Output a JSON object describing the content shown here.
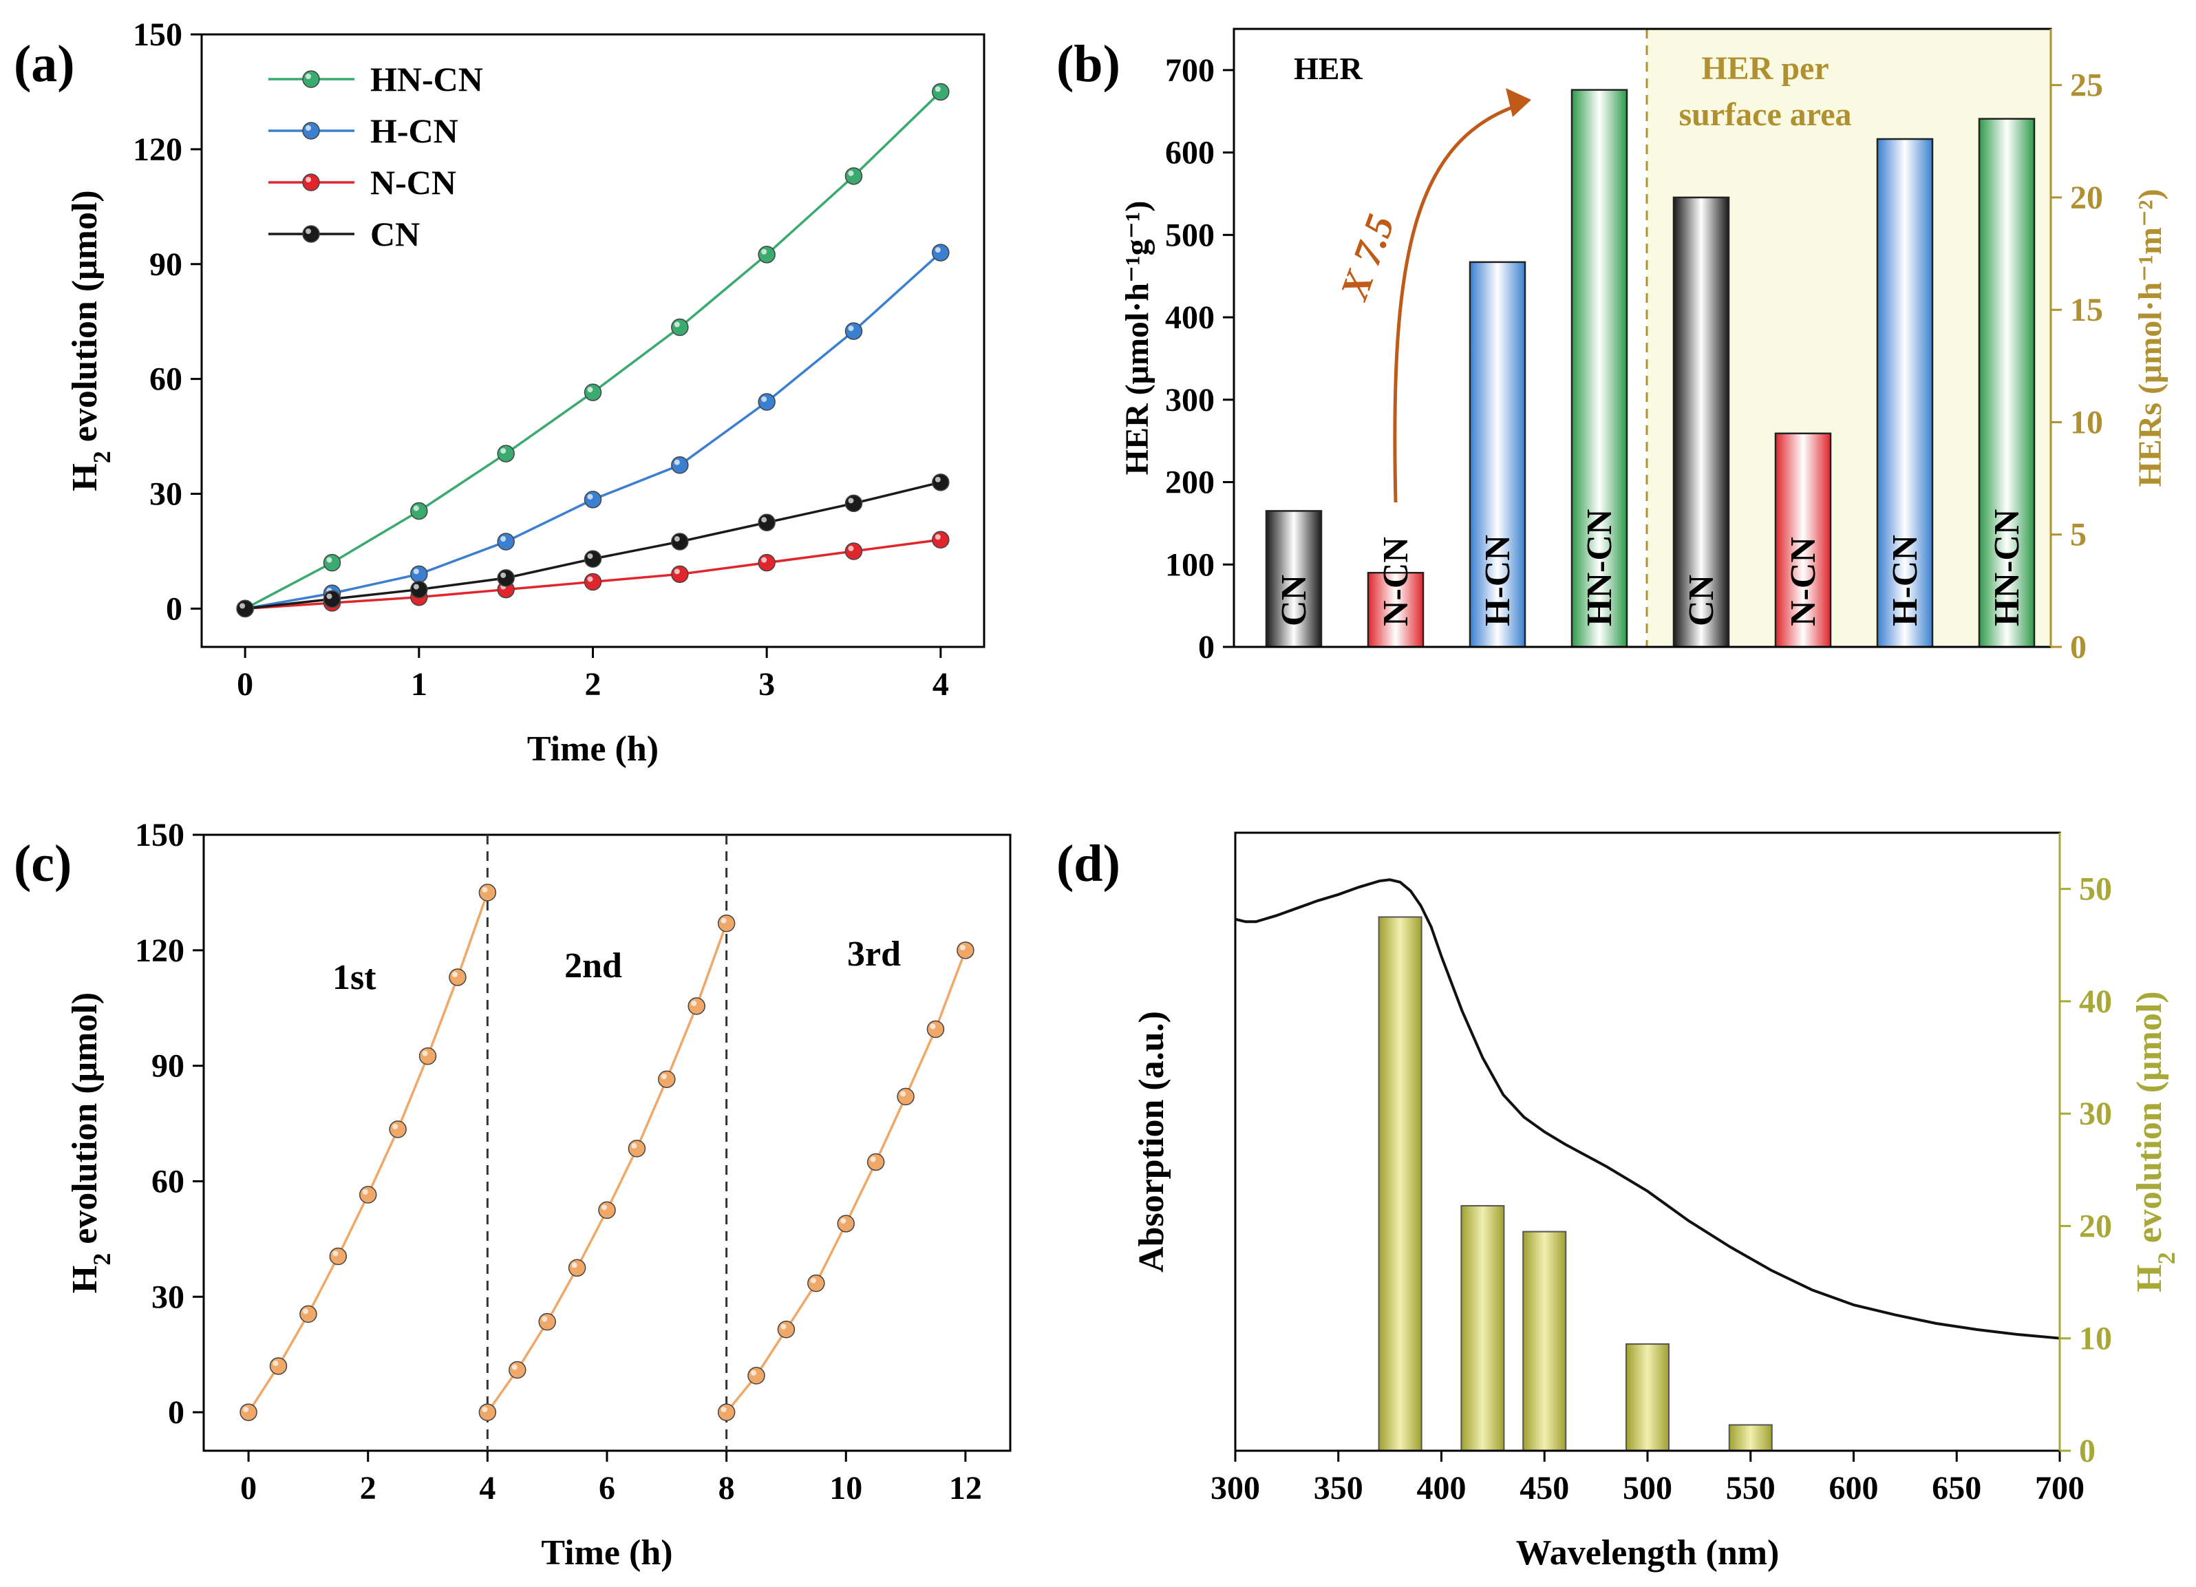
{
  "colors": {
    "hn_cn": "#3aaa6e",
    "h_cn": "#3b7fd0",
    "n_cn": "#e0262c",
    "cn": "#1a1a1a",
    "orange": "#f0a868",
    "arrow": "#c05a18",
    "olive": "#a8a838",
    "olive_text": "#b09030",
    "shade": "#fafae2"
  },
  "chart_data": [
    {
      "panel": "(a)",
      "type": "line",
      "xlabel": "Time (h)",
      "ylabel_main": "H",
      "ylabel_sub": "2",
      "ylabel_rest": " evolution (μmol)",
      "xlim": [
        -0.25,
        4.25
      ],
      "ylim": [
        -10,
        150
      ],
      "xticks": [
        0,
        1,
        2,
        3,
        4
      ],
      "yticks": [
        0,
        30,
        60,
        90,
        120,
        150
      ],
      "legend_position": "top-left",
      "x": [
        0,
        0.5,
        1,
        1.5,
        2,
        2.5,
        3,
        3.5,
        4
      ],
      "series": [
        {
          "name": "HN-CN",
          "values": [
            0,
            12,
            25.5,
            40.5,
            56.5,
            73.5,
            92.5,
            113,
            135
          ]
        },
        {
          "name": "H-CN",
          "values": [
            0,
            4,
            9,
            17.5,
            28.5,
            37.5,
            54,
            72.5,
            93
          ]
        },
        {
          "name": "N-CN",
          "values": [
            0,
            1.5,
            3,
            5,
            7,
            9,
            12,
            15,
            18
          ]
        },
        {
          "name": "CN",
          "values": [
            0,
            2.5,
            5,
            8,
            13,
            17.5,
            22.5,
            27.5,
            33
          ]
        }
      ]
    },
    {
      "panel": "(b)",
      "type": "bar",
      "ylabel_left": "HER (μmol·h⁻¹g⁻¹)",
      "ylabel_right": "HERs (μmol·h⁻¹m⁻²)",
      "ylim_left": [
        0,
        750
      ],
      "ylim_right": [
        0,
        27.5
      ],
      "yticks_left": [
        0,
        100,
        200,
        300,
        400,
        500,
        600,
        700
      ],
      "yticks_right": [
        0,
        5,
        10,
        15,
        20,
        25
      ],
      "left_title": "HER",
      "right_title_line1": "HER per",
      "right_title_line2": "surface area",
      "annotation": "X 7.5",
      "left_group": {
        "axis": "left",
        "categories": [
          "CN",
          "N-CN",
          "H-CN",
          "HN-CN"
        ],
        "values": [
          165,
          90,
          467,
          676
        ]
      },
      "right_group": {
        "axis": "right",
        "categories": [
          "CN",
          "N-CN",
          "H-CN",
          "HN-CN"
        ],
        "values": [
          20.0,
          9.5,
          22.6,
          23.5
        ]
      }
    },
    {
      "panel": "(c)",
      "type": "line",
      "xlabel": "Time (h)",
      "ylabel_main": "H",
      "ylabel_sub": "2",
      "ylabel_rest": " evolution (μmol)",
      "xlim": [
        -0.75,
        12.75
      ],
      "ylim": [
        -10,
        150
      ],
      "xticks": [
        0,
        2,
        4,
        6,
        8,
        10,
        12
      ],
      "yticks": [
        0,
        30,
        60,
        90,
        120,
        150
      ],
      "cycle_labels": [
        "1st",
        "2nd",
        "3rd"
      ],
      "cycle_dividers": [
        4,
        8
      ],
      "cycles": [
        {
          "x": [
            0,
            0.5,
            1,
            1.5,
            2,
            2.5,
            3,
            3.5,
            4
          ],
          "values": [
            0,
            12,
            25.5,
            40.5,
            56.5,
            73.5,
            92.5,
            113,
            135
          ]
        },
        {
          "x": [
            4,
            4.5,
            5,
            5.5,
            6,
            6.5,
            7,
            7.5,
            8
          ],
          "values": [
            0,
            11,
            23.5,
            37.5,
            52.5,
            68.5,
            86.5,
            105.5,
            127
          ]
        },
        {
          "x": [
            8,
            8.5,
            9,
            9.5,
            10,
            10.5,
            11,
            11.5,
            12
          ],
          "values": [
            0,
            9.5,
            21.5,
            33.5,
            49,
            65,
            82,
            99.5,
            120
          ]
        }
      ]
    },
    {
      "panel": "(d)",
      "type": "bar",
      "xlabel": "Wavelength (nm)",
      "ylabel_left": "Absorption (a.u.)",
      "ylabel_right_main": "H",
      "ylabel_right_sub": "2",
      "ylabel_right_rest": " evolution (μmol)",
      "xlim": [
        300,
        700
      ],
      "ylim_right": [
        0,
        55
      ],
      "xticks": [
        300,
        350,
        400,
        450,
        500,
        550,
        600,
        650,
        700
      ],
      "yticks_right": [
        0,
        10,
        20,
        30,
        40,
        50
      ],
      "bars": {
        "x": [
          380,
          420,
          450,
          500,
          550
        ],
        "values": [
          47.5,
          21.8,
          19.5,
          9.5,
          2.3
        ]
      },
      "absorption_curve": {
        "x": [
          300,
          305,
          310,
          320,
          330,
          340,
          350,
          360,
          370,
          375,
          380,
          385,
          390,
          395,
          400,
          410,
          420,
          430,
          440,
          450,
          460,
          480,
          500,
          520,
          540,
          560,
          580,
          600,
          620,
          640,
          660,
          680,
          700
        ],
        "values": [
          0.86,
          0.856,
          0.856,
          0.866,
          0.878,
          0.89,
          0.9,
          0.912,
          0.922,
          0.924,
          0.92,
          0.906,
          0.882,
          0.848,
          0.8,
          0.712,
          0.636,
          0.576,
          0.54,
          0.516,
          0.496,
          0.46,
          0.42,
          0.372,
          0.33,
          0.292,
          0.26,
          0.236,
          0.22,
          0.206,
          0.196,
          0.188,
          0.182
        ]
      }
    }
  ],
  "panels": [
    "(a)",
    "(b)",
    "(c)",
    "(d)"
  ]
}
